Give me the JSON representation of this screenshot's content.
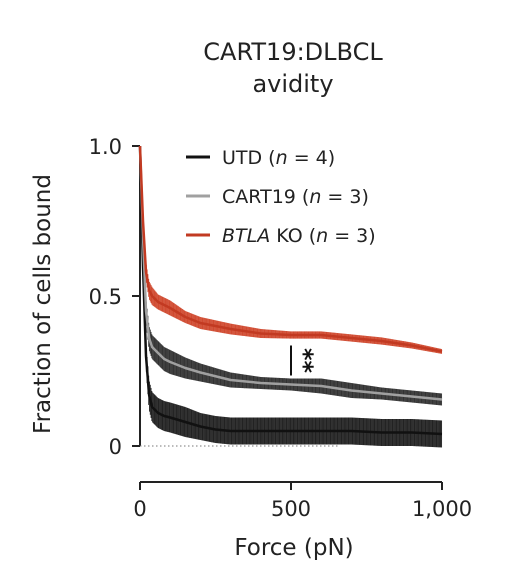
{
  "chart_data": {
    "type": "line",
    "title": [
      "CART19:DLBCL",
      "avidity"
    ],
    "xlabel": "Force (pN)",
    "ylabel": "Fraction of cells bound",
    "xlim": [
      0,
      1000
    ],
    "ylim": [
      0,
      1.0
    ],
    "x_ticks": [
      0,
      500,
      1000
    ],
    "x_tick_labels": [
      "0",
      "500",
      "1,000"
    ],
    "y_ticks": [
      0,
      0.5,
      1.0
    ],
    "y_tick_labels": [
      "0",
      "0.5",
      "1.0"
    ],
    "reference_line": {
      "y": 0,
      "style": "dotted"
    },
    "legend_position": "top-right",
    "series": [
      {
        "legend_parts": [
          {
            "text": "UTD ("
          },
          {
            "text": "n",
            "italic": true
          },
          {
            "text": " = 4)"
          }
        ],
        "color": "#111111",
        "error_color": "#222222",
        "x": [
          0,
          10,
          20,
          30,
          40,
          60,
          80,
          100,
          150,
          200,
          250,
          300,
          400,
          500,
          600,
          700,
          800,
          900,
          1000
        ],
        "y": [
          1.0,
          0.6,
          0.3,
          0.17,
          0.13,
          0.11,
          0.1,
          0.095,
          0.08,
          0.065,
          0.055,
          0.05,
          0.05,
          0.05,
          0.05,
          0.05,
          0.045,
          0.045,
          0.04
        ],
        "err": [
          0,
          0.03,
          0.04,
          0.05,
          0.05,
          0.05,
          0.05,
          0.05,
          0.05,
          0.045,
          0.045,
          0.045,
          0.045,
          0.045,
          0.045,
          0.045,
          0.045,
          0.045,
          0.045
        ]
      },
      {
        "legend_parts": [
          {
            "text": "CART19 ("
          },
          {
            "text": "n",
            "italic": true
          },
          {
            "text": " = 3)"
          }
        ],
        "color": "#a0a0a0",
        "error_color": "#333333",
        "x": [
          0,
          10,
          20,
          30,
          40,
          60,
          80,
          100,
          150,
          200,
          300,
          400,
          500,
          600,
          700,
          800,
          900,
          1000
        ],
        "y": [
          1.0,
          0.7,
          0.45,
          0.36,
          0.33,
          0.31,
          0.29,
          0.28,
          0.26,
          0.245,
          0.22,
          0.21,
          0.205,
          0.2,
          0.185,
          0.175,
          0.165,
          0.155
        ],
        "err": [
          0,
          0.03,
          0.04,
          0.04,
          0.04,
          0.04,
          0.04,
          0.04,
          0.035,
          0.03,
          0.025,
          0.02,
          0.02,
          0.025,
          0.025,
          0.02,
          0.02,
          0.02
        ]
      },
      {
        "legend_parts": [
          {
            "text": "BTLA",
            "italic": true
          },
          {
            "text": " KO ("
          },
          {
            "text": "n",
            "italic": true
          },
          {
            "text": " = 3)"
          }
        ],
        "color": "#c23a22",
        "error_color": "#d04a30",
        "x": [
          0,
          10,
          20,
          30,
          40,
          60,
          80,
          100,
          150,
          200,
          300,
          400,
          500,
          600,
          700,
          800,
          900,
          1000
        ],
        "y": [
          1.0,
          0.75,
          0.58,
          0.52,
          0.5,
          0.48,
          0.47,
          0.46,
          0.43,
          0.41,
          0.39,
          0.375,
          0.37,
          0.37,
          0.36,
          0.35,
          0.335,
          0.315
        ],
        "err": [
          0,
          0.03,
          0.03,
          0.03,
          0.03,
          0.025,
          0.025,
          0.025,
          0.02,
          0.02,
          0.018,
          0.015,
          0.012,
          0.012,
          0.012,
          0.012,
          0.01,
          0.008
        ]
      }
    ],
    "annotations": [
      {
        "text": "**",
        "x": 500,
        "y_range": [
          0.235,
          0.335
        ]
      }
    ]
  }
}
